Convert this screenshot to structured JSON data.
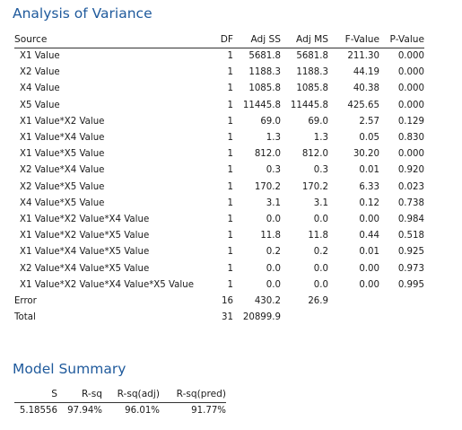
{
  "anova": {
    "title": "Analysis of Variance",
    "headers": [
      "Source",
      "DF",
      "Adj SS",
      "Adj MS",
      "F-Value",
      "P-Value"
    ],
    "rows": [
      {
        "source": "X1 Value",
        "df": "1",
        "adj_ss": "5681.8",
        "adj_ms": "5681.8",
        "f": "211.30",
        "p": "0.000",
        "indent": true
      },
      {
        "source": "X2 Value",
        "df": "1",
        "adj_ss": "1188.3",
        "adj_ms": "1188.3",
        "f": "44.19",
        "p": "0.000",
        "indent": true
      },
      {
        "source": "X4 Value",
        "df": "1",
        "adj_ss": "1085.8",
        "adj_ms": "1085.8",
        "f": "40.38",
        "p": "0.000",
        "indent": true
      },
      {
        "source": "X5 Value",
        "df": "1",
        "adj_ss": "11445.8",
        "adj_ms": "11445.8",
        "f": "425.65",
        "p": "0.000",
        "indent": true
      },
      {
        "source": "X1 Value*X2 Value",
        "df": "1",
        "adj_ss": "69.0",
        "adj_ms": "69.0",
        "f": "2.57",
        "p": "0.129",
        "indent": true
      },
      {
        "source": "X1 Value*X4 Value",
        "df": "1",
        "adj_ss": "1.3",
        "adj_ms": "1.3",
        "f": "0.05",
        "p": "0.830",
        "indent": true
      },
      {
        "source": "X1 Value*X5 Value",
        "df": "1",
        "adj_ss": "812.0",
        "adj_ms": "812.0",
        "f": "30.20",
        "p": "0.000",
        "indent": true
      },
      {
        "source": "X2 Value*X4 Value",
        "df": "1",
        "adj_ss": "0.3",
        "adj_ms": "0.3",
        "f": "0.01",
        "p": "0.920",
        "indent": true
      },
      {
        "source": "X2 Value*X5 Value",
        "df": "1",
        "adj_ss": "170.2",
        "adj_ms": "170.2",
        "f": "6.33",
        "p": "0.023",
        "indent": true
      },
      {
        "source": "X4 Value*X5 Value",
        "df": "1",
        "adj_ss": "3.1",
        "adj_ms": "3.1",
        "f": "0.12",
        "p": "0.738",
        "indent": true
      },
      {
        "source": "X1 Value*X2 Value*X4 Value",
        "df": "1",
        "adj_ss": "0.0",
        "adj_ms": "0.0",
        "f": "0.00",
        "p": "0.984",
        "indent": true
      },
      {
        "source": "X1 Value*X2 Value*X5 Value",
        "df": "1",
        "adj_ss": "11.8",
        "adj_ms": "11.8",
        "f": "0.44",
        "p": "0.518",
        "indent": true
      },
      {
        "source": "X1 Value*X4 Value*X5 Value",
        "df": "1",
        "adj_ss": "0.2",
        "adj_ms": "0.2",
        "f": "0.01",
        "p": "0.925",
        "indent": true
      },
      {
        "source": "X2 Value*X4 Value*X5 Value",
        "df": "1",
        "adj_ss": "0.0",
        "adj_ms": "0.0",
        "f": "0.00",
        "p": "0.973",
        "indent": true
      },
      {
        "source": "X1 Value*X2 Value*X4 Value*X5 Value",
        "df": "1",
        "adj_ss": "0.0",
        "adj_ms": "0.0",
        "f": "0.00",
        "p": "0.995",
        "indent": true
      },
      {
        "source": "Error",
        "df": "16",
        "adj_ss": "430.2",
        "adj_ms": "26.9",
        "f": "",
        "p": "",
        "indent": false
      },
      {
        "source": "Total",
        "df": "31",
        "adj_ss": "20899.9",
        "adj_ms": "",
        "f": "",
        "p": "",
        "indent": false
      }
    ]
  },
  "model_summary": {
    "title": "Model Summary",
    "headers": [
      "S",
      "R-sq",
      "R-sq(adj)",
      "R-sq(pred)"
    ],
    "values": [
      "5.18556",
      "97.94%",
      "96.01%",
      "91.77%"
    ]
  },
  "colors": {
    "heading": "#1f5a9c",
    "text": "#1a1a1a"
  }
}
